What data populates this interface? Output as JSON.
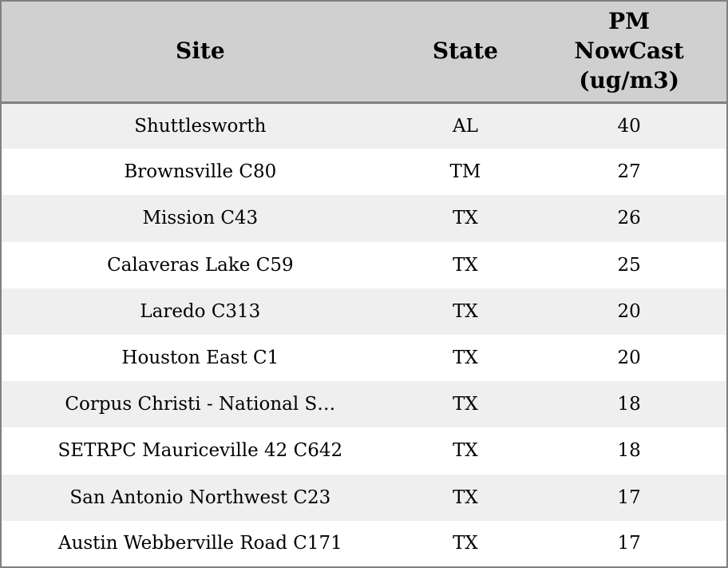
{
  "table": {
    "columns": [
      {
        "label": "Site"
      },
      {
        "label": "State"
      },
      {
        "label": "PM\nNowCast\n(ug/m3)"
      }
    ],
    "rows": [
      {
        "site": "Shuttlesworth",
        "state": "AL",
        "pm": "40"
      },
      {
        "site": "Brownsville C80",
        "state": "TM",
        "pm": "27"
      },
      {
        "site": "Mission C43",
        "state": "TX",
        "pm": "26"
      },
      {
        "site": "Calaveras Lake C59",
        "state": "TX",
        "pm": "25"
      },
      {
        "site": "Laredo C313",
        "state": "TX",
        "pm": "20"
      },
      {
        "site": "Houston East C1",
        "state": "TX",
        "pm": "20"
      },
      {
        "site": "Corpus Christi - National S…",
        "state": "TX",
        "pm": "18"
      },
      {
        "site": "SETRPC Mauriceville 42 C642",
        "state": "TX",
        "pm": "18"
      },
      {
        "site": "San Antonio Northwest C23",
        "state": "TX",
        "pm": "17"
      },
      {
        "site": "Austin Webberville Road C171",
        "state": "TX",
        "pm": "17"
      }
    ],
    "colors": {
      "border": "#808080",
      "header_bg": "#d0d0d0",
      "row_odd_bg": "#efefef",
      "row_even_bg": "#ffffff",
      "text": "#000000"
    }
  }
}
